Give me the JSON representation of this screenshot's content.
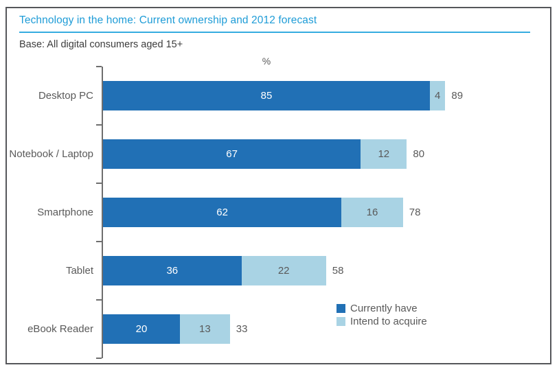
{
  "header": {
    "title": "Technology in the home: Current ownership and 2012 forecast",
    "base_note": "Base: All digital consumers aged 15+"
  },
  "axis_unit_label": "%",
  "colors": {
    "currently_have": "#2170b5",
    "intend_to_acquire": "#a9d3e4",
    "title_blue": "#1e9cd7",
    "rule_blue": "#35ace0",
    "axis_gray": "#6e6e6e",
    "text_gray": "#595959",
    "frame_gray": "#55565a"
  },
  "chart_data": {
    "type": "bar",
    "orientation": "horizontal",
    "title": "Technology in the home: Current ownership and 2012 forecast",
    "subtitle": "Base: All digital consumers aged 15+",
    "xlabel": "%",
    "xlim": [
      0,
      100
    ],
    "grid": false,
    "legend_position": "bottom-right",
    "categories": [
      "Desktop PC",
      "Notebook / Laptop",
      "Smartphone",
      "Tablet",
      "eBook Reader"
    ],
    "series": [
      {
        "name": "Currently have",
        "color": "#2170b5",
        "values": [
          85,
          67,
          62,
          36,
          20
        ]
      },
      {
        "name": "Intend to acquire",
        "color": "#a9d3e4",
        "values": [
          4,
          12,
          16,
          22,
          13
        ]
      }
    ],
    "totals": [
      89,
      80,
      78,
      58,
      33
    ],
    "value_label_style": "segment values inside bars, total at bar end"
  }
}
